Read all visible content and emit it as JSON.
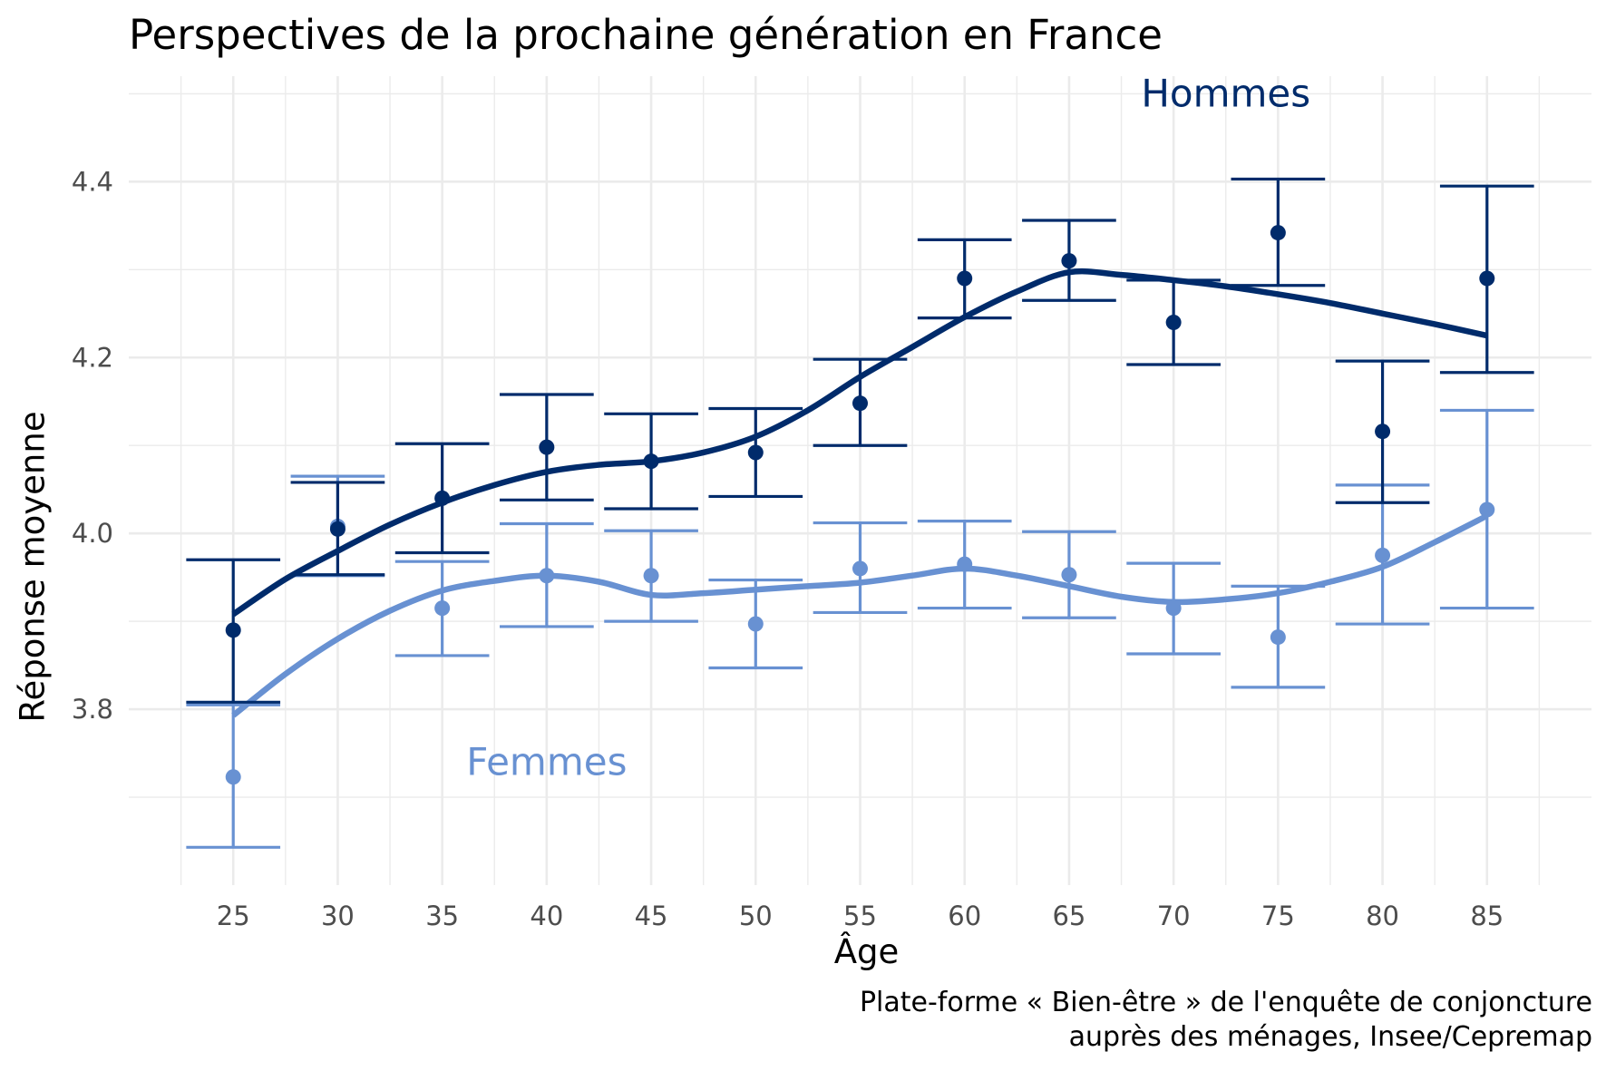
{
  "chart_data": {
    "type": "line",
    "title": "Perspectives de la prochaine génération en France",
    "xlabel": "Âge",
    "ylabel": "Réponse moyenne",
    "caption": [
      "Plate-forme « Bien-être » de l'enquête de conjoncture",
      "auprès des ménages, Insee/Cepremap"
    ],
    "x_ticks": [
      25,
      30,
      35,
      40,
      45,
      50,
      55,
      60,
      65,
      70,
      75,
      80,
      85
    ],
    "y_ticks": [
      3.8,
      4.0,
      4.2,
      4.4
    ],
    "y_tick_labels": [
      "3.8",
      "4.0",
      "4.2",
      "4.4"
    ],
    "xlim": [
      20,
      90
    ],
    "ylim": [
      3.6,
      4.52
    ],
    "grid": true,
    "series": [
      {
        "name": "Hommes",
        "color": "#002b6b",
        "x": [
          25,
          30,
          35,
          40,
          45,
          50,
          55,
          60,
          65,
          70,
          75,
          80,
          85
        ],
        "mean": [
          3.89,
          4.005,
          4.04,
          4.098,
          4.082,
          4.092,
          4.148,
          4.29,
          4.31,
          4.24,
          4.342,
          4.116,
          4.29
        ],
        "lower": [
          3.808,
          3.953,
          3.978,
          4.038,
          4.028,
          4.042,
          4.1,
          4.245,
          4.265,
          4.192,
          4.282,
          4.035,
          4.183
        ],
        "upper": [
          3.97,
          4.058,
          4.102,
          4.158,
          4.136,
          4.142,
          4.198,
          4.334,
          4.356,
          4.288,
          4.403,
          4.196,
          4.395
        ],
        "smooth_x": [
          25,
          27.5,
          30,
          32.5,
          35,
          37.5,
          40,
          42.5,
          45,
          47.5,
          50,
          52.5,
          55,
          57.5,
          60,
          62.5,
          65,
          67.5,
          70,
          72.5,
          75,
          77.5,
          80,
          82.5,
          85
        ],
        "smooth_y": [
          3.908,
          3.948,
          3.98,
          4.01,
          4.035,
          4.055,
          4.07,
          4.078,
          4.082,
          4.092,
          4.11,
          4.14,
          4.178,
          4.212,
          4.246,
          4.275,
          4.297,
          4.294,
          4.288,
          4.281,
          4.272,
          4.262,
          4.25,
          4.238,
          4.225
        ],
        "label_position": [
          72.5,
          4.5
        ]
      },
      {
        "name": "Femmes",
        "color": "#6891d2",
        "x": [
          25,
          30,
          35,
          40,
          45,
          50,
          55,
          60,
          65,
          70,
          75,
          80,
          85
        ],
        "mean": [
          3.723,
          4.008,
          3.915,
          3.952,
          3.952,
          3.897,
          3.96,
          3.965,
          3.953,
          3.915,
          3.882,
          3.975,
          4.027
        ],
        "lower": [
          3.643,
          3.952,
          3.861,
          3.894,
          3.9,
          3.847,
          3.91,
          3.915,
          3.904,
          3.863,
          3.825,
          3.897,
          3.915
        ],
        "upper": [
          3.805,
          4.065,
          3.968,
          4.011,
          4.003,
          3.947,
          4.012,
          4.014,
          4.002,
          3.966,
          3.94,
          4.055,
          4.14
        ],
        "smooth_x": [
          25,
          27.5,
          30,
          32.5,
          35,
          37.5,
          40,
          42.5,
          45,
          47.5,
          50,
          52.5,
          55,
          57.5,
          60,
          62.5,
          65,
          67.5,
          70,
          72.5,
          75,
          77.5,
          80,
          82.5,
          85
        ],
        "smooth_y": [
          3.793,
          3.84,
          3.88,
          3.912,
          3.935,
          3.946,
          3.952,
          3.945,
          3.93,
          3.932,
          3.936,
          3.94,
          3.944,
          3.952,
          3.96,
          3.952,
          3.94,
          3.928,
          3.922,
          3.925,
          3.932,
          3.945,
          3.962,
          3.99,
          4.02
        ],
        "label_position": [
          40,
          3.74
        ]
      }
    ]
  }
}
